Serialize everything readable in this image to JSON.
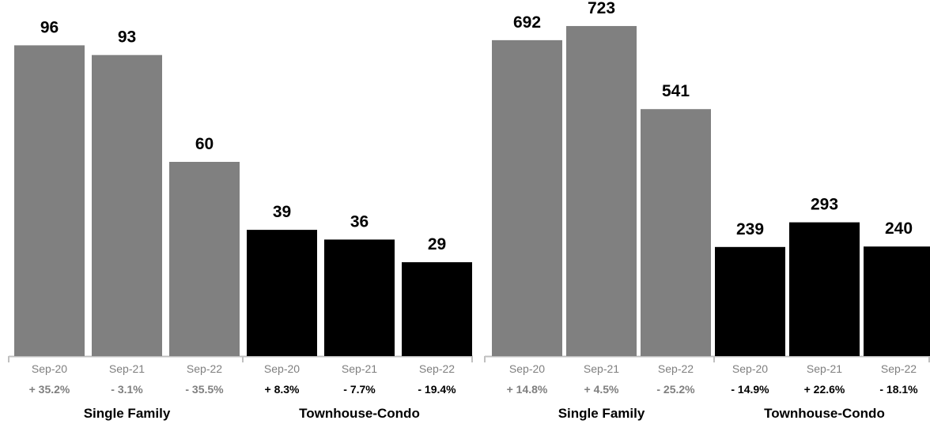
{
  "colors": {
    "single_family": "#808080",
    "townhouse_condo": "#000000",
    "single_family_label": "#7f7f7f",
    "townhouse_label": "#000000",
    "axis": "#c0c0c0"
  },
  "chart_data": [
    {
      "type": "bar",
      "groups": [
        {
          "name": "Single Family",
          "color": "#808080",
          "categories": [
            "Sep-20",
            "Sep-21",
            "Sep-22"
          ],
          "values": [
            96,
            93,
            60
          ],
          "changes": [
            "+ 35.2%",
            "- 3.1%",
            "- 35.5%"
          ]
        },
        {
          "name": "Townhouse-Condo",
          "color": "#000000",
          "categories": [
            "Sep-20",
            "Sep-21",
            "Sep-22"
          ],
          "values": [
            39,
            36,
            29
          ],
          "changes": [
            "+ 8.3%",
            "- 7.7%",
            "- 19.4%"
          ]
        }
      ],
      "ylim": [
        0,
        110
      ],
      "grid": false,
      "title": "",
      "xlabel": "",
      "ylabel": ""
    },
    {
      "type": "bar",
      "groups": [
        {
          "name": "Single Family",
          "color": "#808080",
          "categories": [
            "Sep-20",
            "Sep-21",
            "Sep-22"
          ],
          "values": [
            692,
            723,
            541
          ],
          "changes": [
            "+ 14.8%",
            "+ 4.5%",
            "- 25.2%"
          ]
        },
        {
          "name": "Townhouse-Condo",
          "color": "#000000",
          "categories": [
            "Sep-20",
            "Sep-21",
            "Sep-22"
          ],
          "values": [
            239,
            293,
            240
          ],
          "changes": [
            "- 14.9%",
            "+ 22.6%",
            "- 18.1%"
          ]
        }
      ],
      "ylim": [
        0,
        780
      ],
      "grid": false,
      "title": "",
      "xlabel": "",
      "ylabel": ""
    }
  ]
}
